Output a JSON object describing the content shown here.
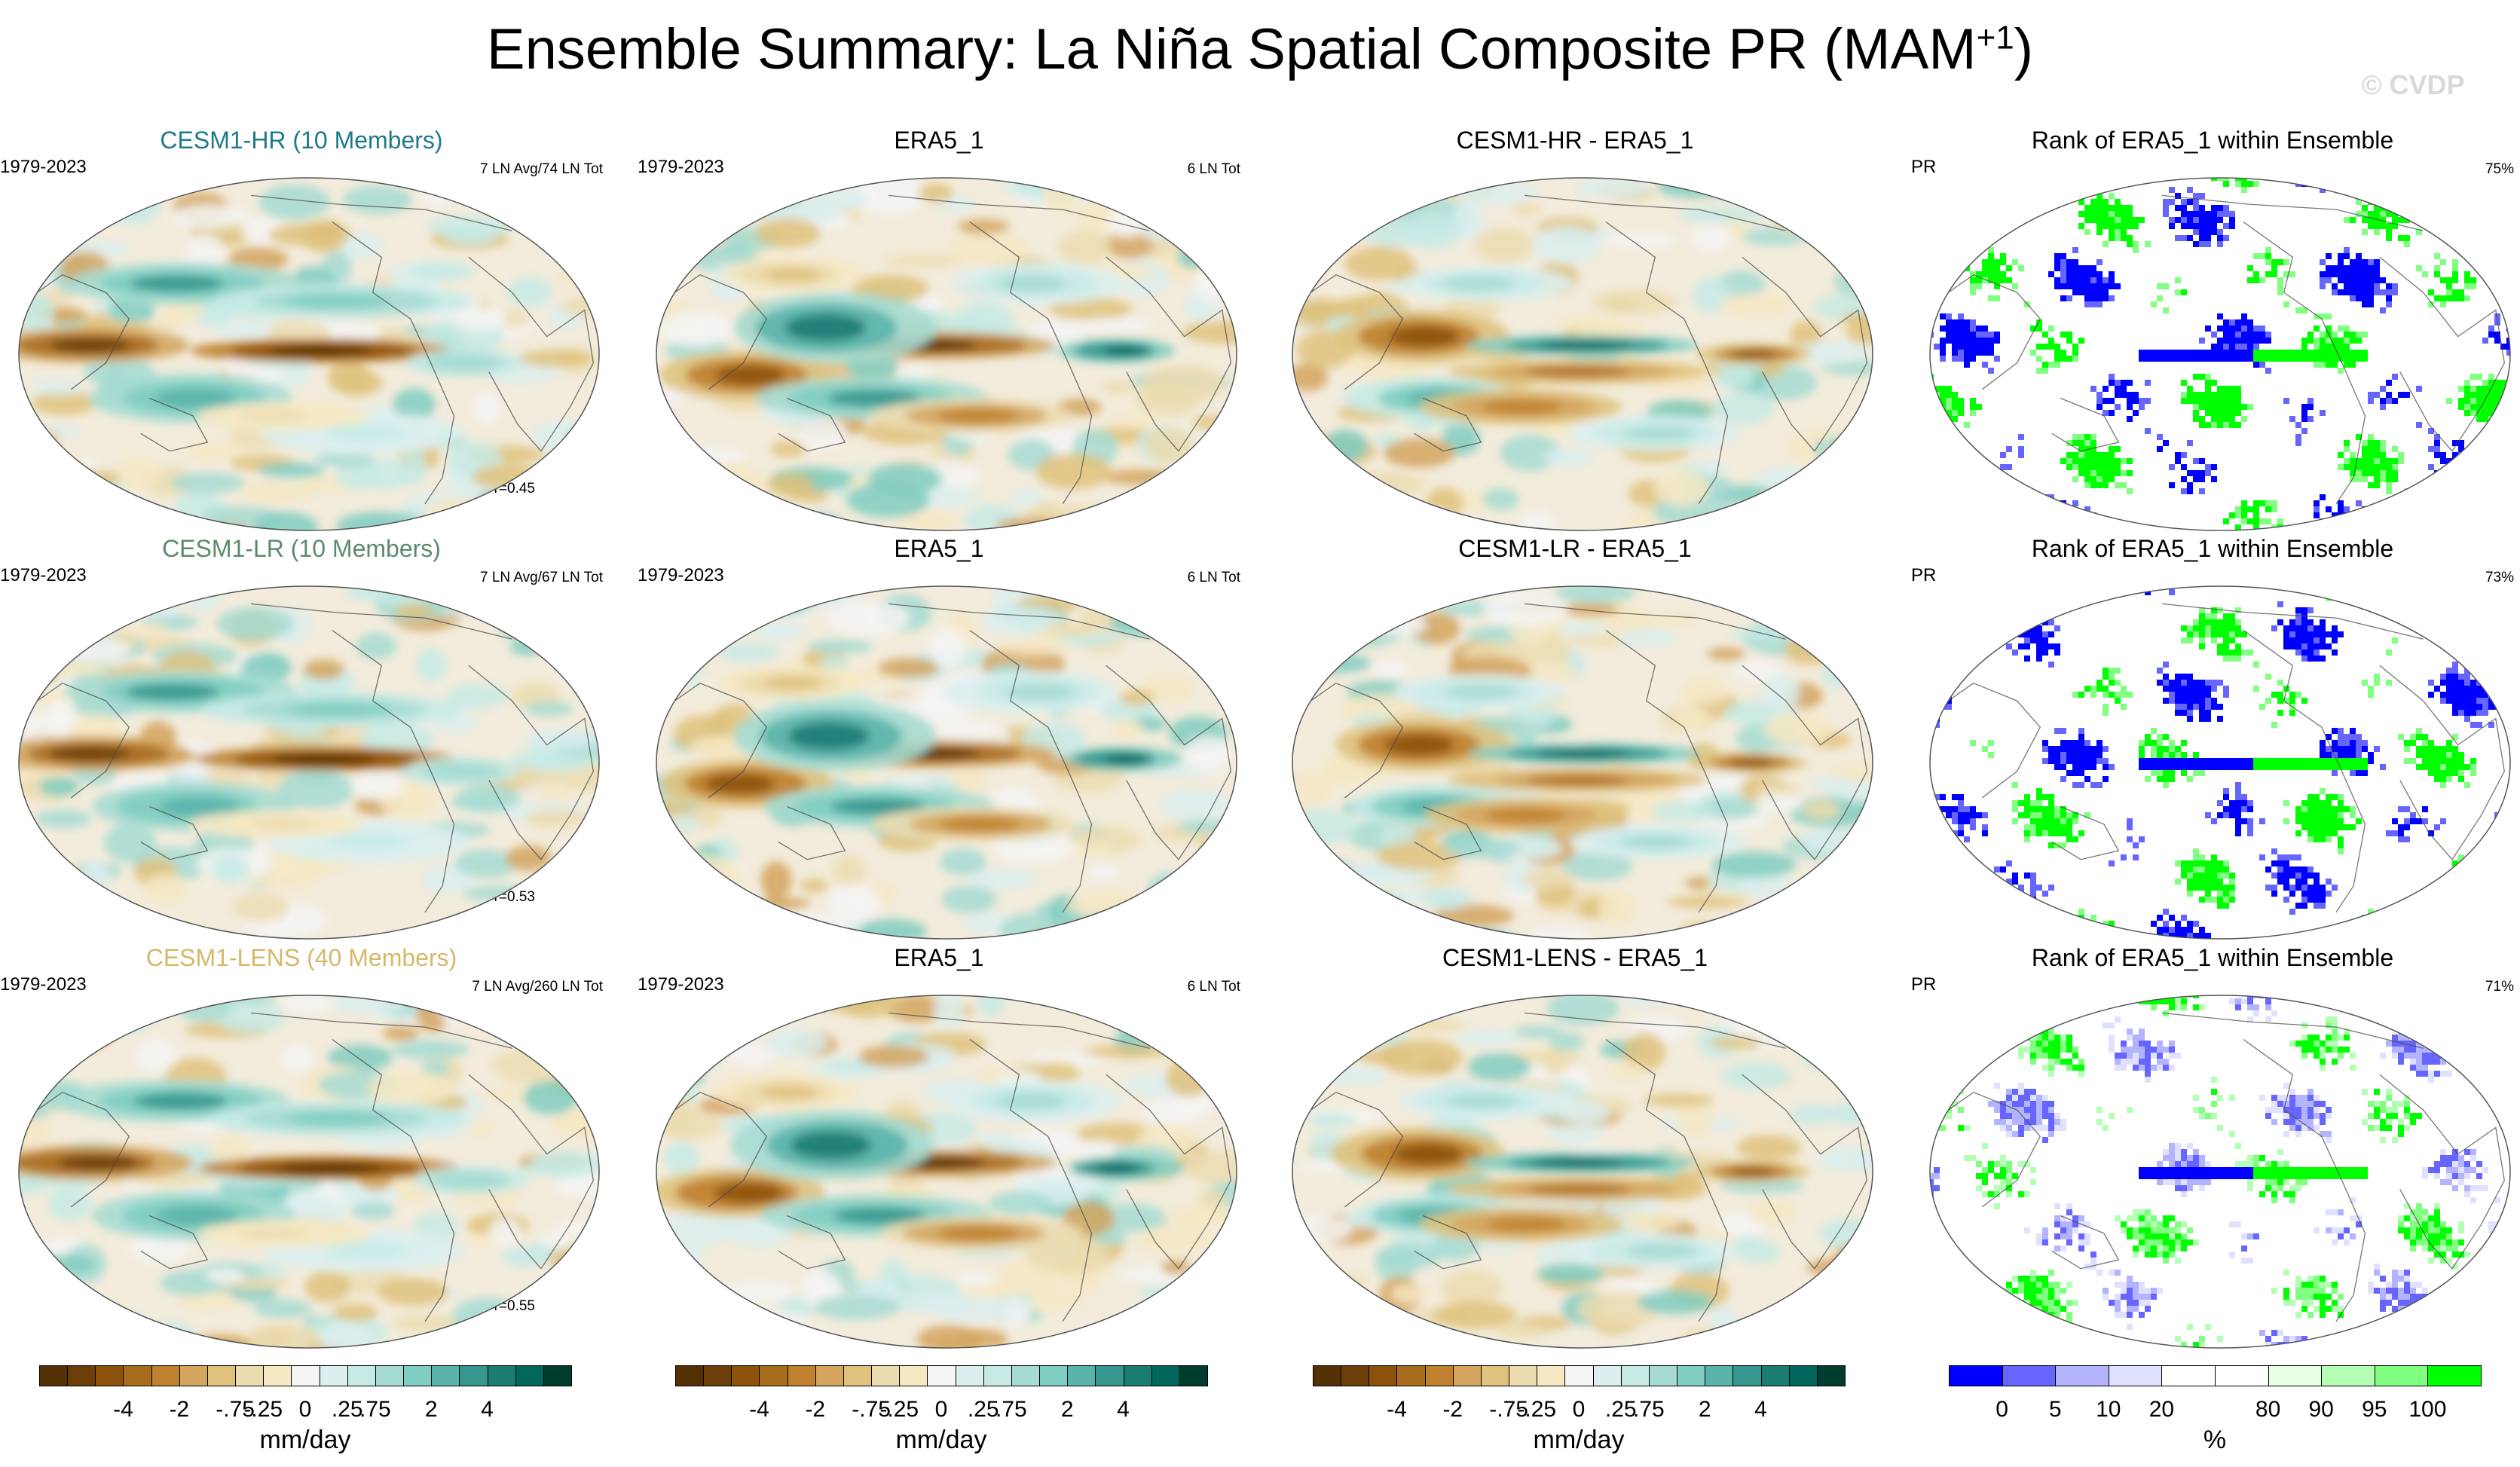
{
  "title": {
    "main": "Ensemble Summary: La Niña Spatial Composite PR (MAM",
    "sup": "+1",
    "tail": ")"
  },
  "watermark": "© CVDP",
  "rows": [
    {
      "model": {
        "title": "CESM1-HR (10 Members)",
        "color": "#1f7a8c",
        "years": "1979-2023",
        "stat": "7 LN Avg/74 LN Tot",
        "corr": "r=0.45"
      },
      "obs": {
        "title": "ERA5_1",
        "years": "1979-2023",
        "stat": "6 LN Tot"
      },
      "diff": {
        "title": "CESM1-HR - ERA5_1"
      },
      "rank": {
        "title": "Rank of ERA5_1 within Ensemble",
        "var": "PR",
        "pct": "75%"
      }
    },
    {
      "model": {
        "title": "CESM1-LR (10 Members)",
        "color": "#5d8a6a",
        "years": "1979-2023",
        "stat": "7 LN Avg/67 LN Tot",
        "corr": "r=0.53"
      },
      "obs": {
        "title": "ERA5_1",
        "years": "1979-2023",
        "stat": "6 LN Tot"
      },
      "diff": {
        "title": "CESM1-LR - ERA5_1"
      },
      "rank": {
        "title": "Rank of ERA5_1 within Ensemble",
        "var": "PR",
        "pct": "73%"
      }
    },
    {
      "model": {
        "title": "CESM1-LENS (40 Members)",
        "color": "#d6b86a",
        "years": "1979-2023",
        "stat": "7 LN Avg/260 LN Tot",
        "corr": "r=0.55"
      },
      "obs": {
        "title": "ERA5_1",
        "years": "1979-2023",
        "stat": "6 LN Tot"
      },
      "diff": {
        "title": "CESM1-LENS - ERA5_1"
      },
      "rank": {
        "title": "Rank of ERA5_1 within Ensemble",
        "var": "PR",
        "pct": "71%"
      }
    }
  ],
  "colorbars": {
    "anomaly": {
      "colors": [
        "#543005",
        "#6b3d09",
        "#8c510a",
        "#a86c1f",
        "#bf812d",
        "#d4a55f",
        "#dfc27d",
        "#ecdcb0",
        "#f6e8c3",
        "#f5f5f5",
        "#dcefef",
        "#c7eae5",
        "#a6dbd2",
        "#80cdc1",
        "#5ab4ac",
        "#35978f",
        "#1b7c73",
        "#01665e",
        "#003c30"
      ],
      "labels": [
        "-4",
        "-2",
        "-.75",
        "-.25",
        "0",
        ".25",
        ".75",
        "2",
        "4"
      ],
      "unit": "mm/day"
    },
    "rank": {
      "colors": [
        "#0000ff",
        "#6666ff",
        "#b3b3ff",
        "#e0e0ff",
        "#ffffff",
        "#ffffff",
        "#e6ffe6",
        "#b3ffb3",
        "#80ff80",
        "#00ff00"
      ],
      "labels": [
        "0",
        "5",
        "10",
        "20",
        "80",
        "90",
        "95",
        "100"
      ],
      "unit": "%"
    }
  }
}
